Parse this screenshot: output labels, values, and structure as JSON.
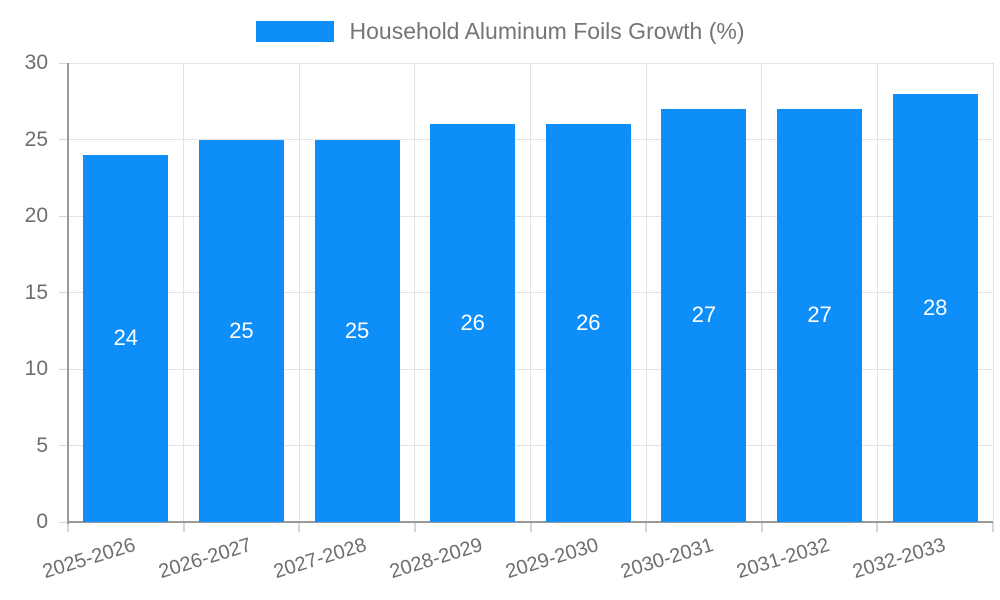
{
  "legend": {
    "label": "Household Aluminum Foils Growth (%)"
  },
  "chart_data": {
    "type": "bar",
    "title": "Household Aluminum Foils Growth (%)",
    "categories": [
      "2025-2026",
      "2026-2027",
      "2027-2028",
      "2028-2029",
      "2029-2030",
      "2030-2031",
      "2031-2032",
      "2032-2033"
    ],
    "values": [
      24,
      25,
      25,
      26,
      26,
      27,
      27,
      28
    ],
    "bar_value_labels": [
      "24",
      "25",
      "25",
      "26",
      "26",
      "27",
      "27",
      "28"
    ],
    "xlabel": "",
    "ylabel": "",
    "ylim": [
      0,
      30
    ],
    "ytick_interval": 5,
    "ytick_labels": [
      "0",
      "5",
      "10",
      "15",
      "20",
      "25",
      "30"
    ],
    "grid": "both",
    "legend_position": "top-center",
    "colors": {
      "bar": "#0d8ef8",
      "grid": "#e3e3e3",
      "axis": "#9a9a9a",
      "tick": "#d6d6d6",
      "axis_text": "#6e6e6e",
      "legend_text": "#757575",
      "value_text": "#ffffff",
      "background": "#ffffff"
    }
  }
}
